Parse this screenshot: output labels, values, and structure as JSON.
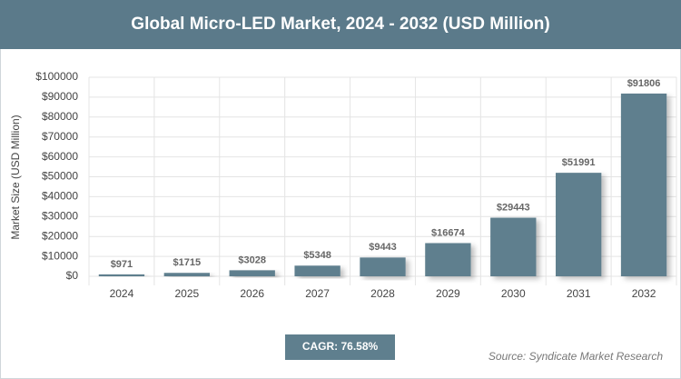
{
  "chart_data": {
    "type": "bar",
    "title": "Global Micro-LED Market, 2024 - 2032 (USD Million)",
    "y_label": "Market Size (USD Million)",
    "categories": [
      "2024",
      "2025",
      "2026",
      "2027",
      "2028",
      "2029",
      "2030",
      "2031",
      "2032"
    ],
    "values": [
      971,
      1715,
      3028,
      5348,
      9443,
      16674,
      29443,
      51991,
      91806
    ],
    "value_labels": [
      "$971",
      "$1715",
      "$3028",
      "$5348",
      "$9443",
      "$16674",
      "$29443",
      "$51991",
      "$91806"
    ],
    "color": "#5f7f8e",
    "ylim": [
      0,
      100000
    ],
    "yticks": [
      {
        "value": 0,
        "label": "$0"
      },
      {
        "value": 10000,
        "label": "$10000"
      },
      {
        "value": 20000,
        "label": "$20000"
      },
      {
        "value": 30000,
        "label": "$30000"
      },
      {
        "value": 40000,
        "label": "$40000"
      },
      {
        "value": 50000,
        "label": "$50000"
      },
      {
        "value": 60000,
        "label": "$60000"
      },
      {
        "value": 70000,
        "label": "$70000"
      },
      {
        "value": 80000,
        "label": "$80000"
      },
      {
        "value": 90000,
        "label": "$90000"
      },
      {
        "value": 100000,
        "label": "$100000"
      }
    ],
    "grid": true,
    "cagr": "CAGR: 76.58%",
    "source": "Source: Syndicate Market Research"
  }
}
